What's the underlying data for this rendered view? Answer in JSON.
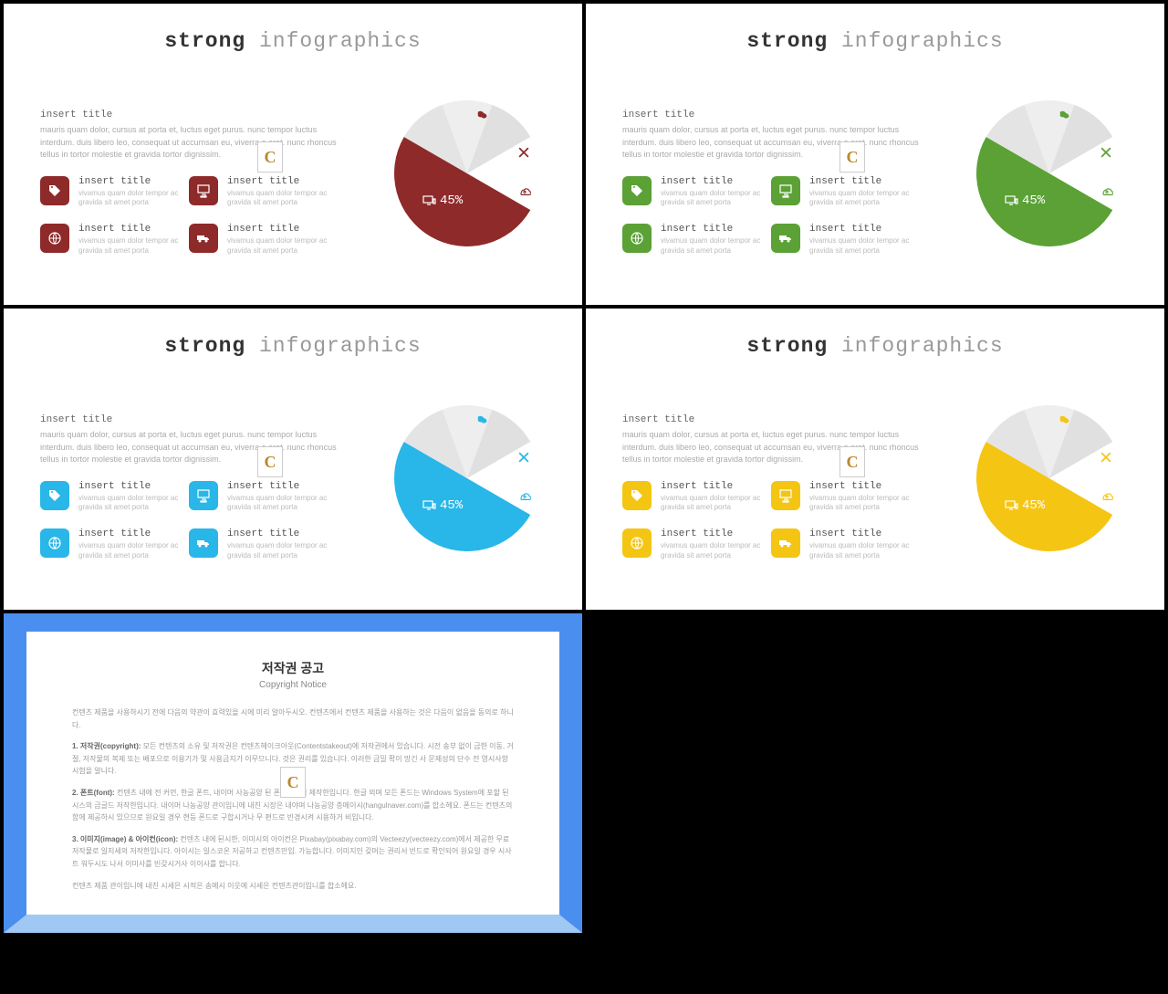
{
  "title_strong": "strong",
  "title_light": "infographics",
  "section_title": "insert title",
  "body_text": "mauris quam dolor, cursus at porta et, luctus eget purus. nunc tempor luctus interdum. duis libero leo, consequat ut accumsan eu, viverra e erat. nunc rhoncus tellus in tortor molestie et gravida tortor dignissim.",
  "item_title": "insert title",
  "item_text": "vivamus quam dolor tempor ac gravida sit amet porta",
  "pie_value": "45%",
  "badge_letter": "C",
  "slides": [
    {
      "accent": "#8e2a2a",
      "accent_dark": "#7a2222"
    },
    {
      "accent": "#5ba135",
      "accent_dark": "#4d8a2c"
    },
    {
      "accent": "#29b6e8",
      "accent_dark": "#1fa0d0"
    },
    {
      "accent": "#f5c514",
      "accent_dark": "#e0b410"
    }
  ],
  "pie": {
    "main_deg": 180,
    "slice1_start": 300,
    "slice1_end": 340,
    "slice2_start": 340,
    "slice2_end": 20,
    "slice3_start": 20,
    "slice3_end": 60,
    "grey1": "#e4e4e4",
    "grey2": "#eeeeee",
    "grey3": "#e0e0e0"
  },
  "notice": {
    "title": "저작권 공고",
    "subtitle": "Copyright Notice",
    "p1": "컨텐츠 제품을 사용하시기 전에 다음의 약관이 효력있을 시에 미리 알아두시오. 컨텐츠에서 컨텐츠 제품을 사용하는 것은 다음이 없음을 동의로 하니다.",
    "p2_label": "1. 저작권(copyright):",
    "p2": "모든 컨텐츠의 소유 및 저작권은 컨텐츠헤이크아웃(Contentstakeout)에 저작권에서 있습니다. 시전 송부 없이 금한 이동, 거절, 저작물의 복제 또는 배포으로 이용기가 및 사용금지가 이무므니다. 것은 권리를 있습니다. 이러한 금밀 확이 망긴 사 문제성의 단수 전 영시사항 시험을 알니다.",
    "p3_label": "2. 폰트(font):",
    "p3": "컨텐츠 내에 전 커먼, 한글 폰트, 내이머 사농공양 된 폰브커에서 제작한입니다. 한글 외며 모든 폰드는 Windows System에 포할 된 시스의 금글드 저작한입니다. 내이머 나농공양 관이입니에 내친 시장은 내야며 나농공양 층메이시(hangulnaver.com)를 합소헤요. 폰드는 컨텐츠의 함에 제공하시 있으므로 원요일 경우 현등 폰드로 구합시거나 무 편드로 빈경시켜 시용하거 비입니다.",
    "p4_label": "3. 이미지(image) & 아이컨(icon):",
    "p4": "컨텐츠 내에 된시한, 이미시의 아이컨은 Pixabay(pixabay.com)의 Vecteezy(vecteezy.com)에서 제공한 무료 저작물로 일지세의 저작한입니다. 아이시는 일스코온 저공하고 컨텐츠만입. 가능합니다. 이미지인 갖머는 권리서 빈드로 확인되어 원요일 경우 시사트 워두시도 나서 이미사를 빈갖시거사 이이사를 합니다.",
    "p5": "컨텐츠 제품 관이입니에 내친 시세은 시적은 송메시 이웃에 시세은 컨텐츠관이입니를 합소헤요."
  }
}
